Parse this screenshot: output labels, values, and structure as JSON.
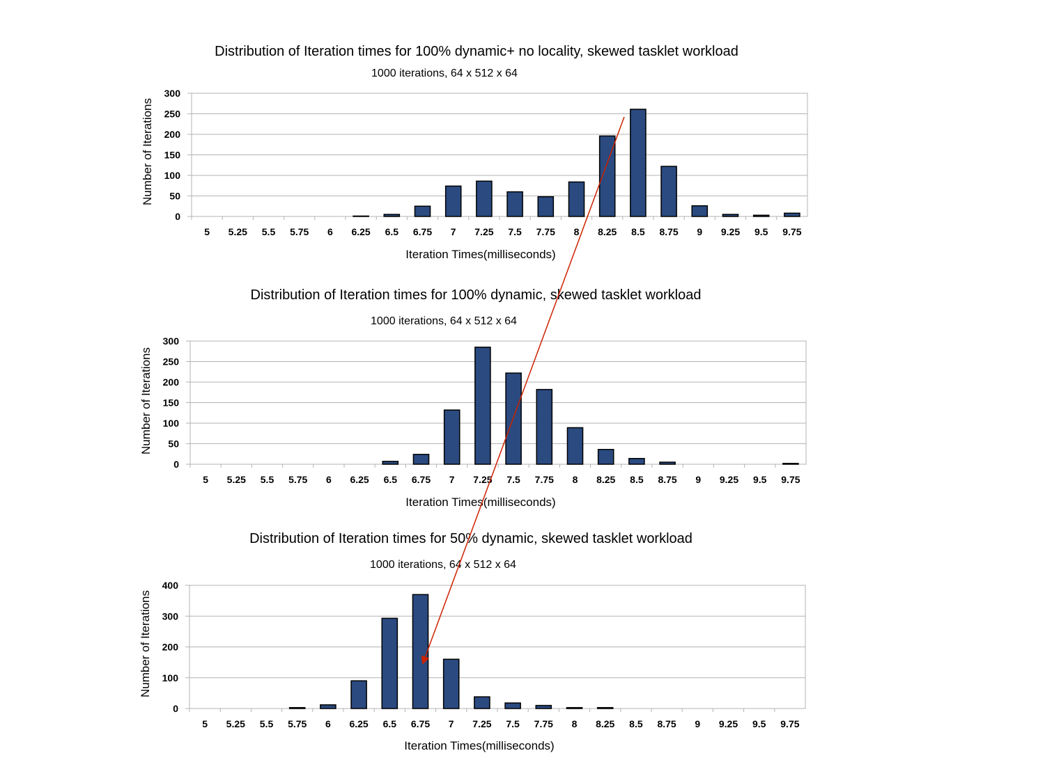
{
  "colors": {
    "bar_fill": "#2a4a80",
    "annotation_arrow": "#cc2200"
  },
  "chart_data": [
    {
      "type": "bar",
      "title": "Distribution of Iteration times for 100% dynamic+ no locality, skewed tasklet workload",
      "subtitle": "1000 iterations, 64 x 512 x 64",
      "xlabel": "Iteration Times(milliseconds)",
      "ylabel": "Number of Iterations",
      "ylim": [
        0,
        300
      ],
      "yticks": [
        "0",
        "50",
        "100",
        "150",
        "200",
        "250",
        "300"
      ],
      "grid": true,
      "legend": "none",
      "categories": [
        "5",
        "5.25",
        "5.5",
        "5.75",
        "6",
        "6.25",
        "6.5",
        "6.75",
        "7",
        "7.25",
        "7.5",
        "7.75",
        "8",
        "8.25",
        "8.5",
        "8.75",
        "9",
        "9.25",
        "9.5",
        "9.75"
      ],
      "values": [
        0,
        0,
        0,
        0,
        0,
        1,
        5,
        25,
        74,
        86,
        60,
        48,
        84,
        196,
        261,
        122,
        26,
        5,
        3,
        8
      ]
    },
    {
      "type": "bar",
      "title": "Distribution of Iteration times for 100% dynamic, skewed tasklet workload",
      "subtitle": "1000 iterations, 64 x 512 x 64",
      "xlabel": "Iteration Times(milliseconds)",
      "ylabel": "Number of Iterations",
      "ylim": [
        0,
        300
      ],
      "yticks": [
        "0",
        "50",
        "100",
        "150",
        "200",
        "250",
        "300"
      ],
      "grid": true,
      "legend": "none",
      "categories": [
        "5",
        "5.25",
        "5.5",
        "5.75",
        "6",
        "6.25",
        "6.5",
        "6.75",
        "7",
        "7.25",
        "7.5",
        "7.75",
        "8",
        "8.25",
        "8.5",
        "8.75",
        "9",
        "9.25",
        "9.5",
        "9.75"
      ],
      "values": [
        0,
        0,
        0,
        0,
        0,
        0,
        7,
        24,
        132,
        285,
        222,
        182,
        89,
        36,
        14,
        5,
        0,
        0,
        0,
        2
      ]
    },
    {
      "type": "bar",
      "title": "Distribution of Iteration times for 50% dynamic, skewed tasklet workload",
      "subtitle": "1000 iterations, 64 x 512 x 64",
      "xlabel": "Iteration Times(milliseconds)",
      "ylabel": "Number of Iterations",
      "ylim": [
        0,
        400
      ],
      "yticks": [
        "0",
        "100",
        "200",
        "300",
        "400"
      ],
      "grid": true,
      "legend": "none",
      "categories": [
        "5",
        "5.25",
        "5.5",
        "5.75",
        "6",
        "6.25",
        "6.5",
        "6.75",
        "7",
        "7.25",
        "7.5",
        "7.75",
        "8",
        "8.25",
        "8.5",
        "8.75",
        "9",
        "9.25",
        "9.5",
        "9.75"
      ],
      "values": [
        0,
        0,
        0,
        3,
        12,
        90,
        293,
        370,
        160,
        38,
        18,
        10,
        3,
        3,
        0,
        0,
        0,
        0,
        0,
        0
      ]
    }
  ]
}
